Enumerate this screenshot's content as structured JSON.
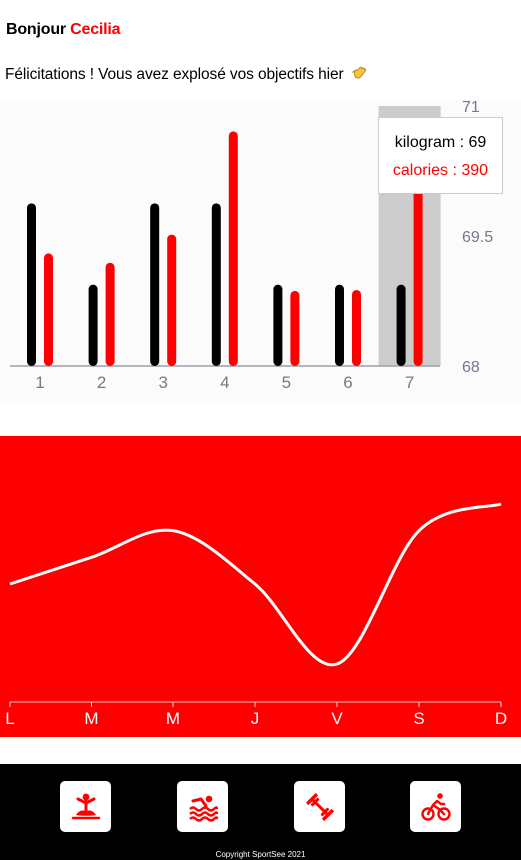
{
  "header": {
    "greeting": "Bonjour",
    "user_name": "Cecilia",
    "congrats": "Félicitations ! Vous avez explosé vos objectifs hier"
  },
  "activity": {
    "tooltip": {
      "kilogram": "kilogram : 69",
      "calories": "calories : 390"
    },
    "active_day": 7
  },
  "sports": [
    {
      "icon": "yoga-icon",
      "label": "yoga"
    },
    {
      "icon": "swimming-icon",
      "label": "swimming"
    },
    {
      "icon": "weightlifting-icon",
      "label": "weightlifting"
    },
    {
      "icon": "cycling-icon",
      "label": "cycling"
    }
  ],
  "footer": {
    "copyright": "Copyright SportSee 2021"
  },
  "colors": {
    "accent": "#ff0000",
    "dark": "#000000",
    "chart_bg": "#fbfbfb",
    "highlight": "#cccccc"
  },
  "chart_data": [
    {
      "type": "bar",
      "categories": [
        "1",
        "2",
        "3",
        "4",
        "5",
        "6",
        "7"
      ],
      "series": [
        {
          "name": "kilogram",
          "values": [
            70,
            69,
            70,
            70,
            69,
            69,
            69
          ],
          "color": "#000000"
        },
        {
          "name": "calories",
          "values": [
            240,
            220,
            280,
            500,
            160,
            162,
            390
          ],
          "color": "#ff0000"
        }
      ],
      "y_ticks": [
        "68",
        "69.5",
        "71"
      ],
      "ylim": [
        68,
        71
      ],
      "calories_max": 520,
      "legend": "none",
      "grid": false
    },
    {
      "type": "line",
      "categories": [
        "L",
        "M",
        "M",
        "J",
        "V",
        "S",
        "D"
      ],
      "values": [
        30,
        40,
        50,
        30,
        0,
        50,
        60
      ],
      "color": "#ffffff",
      "grid": false
    }
  ]
}
